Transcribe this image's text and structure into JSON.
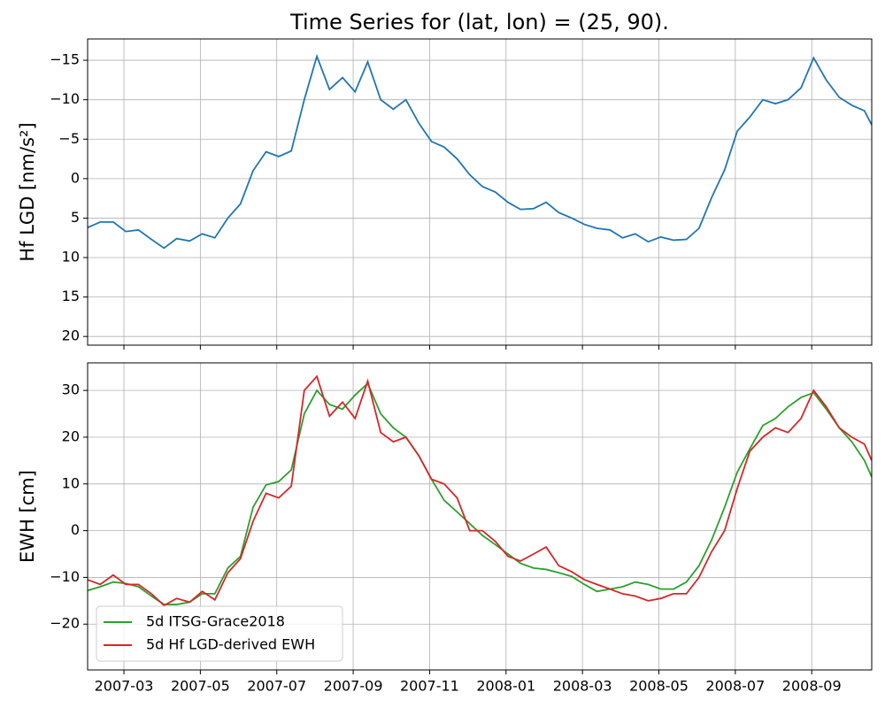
{
  "chart_data": [
    {
      "type": "line",
      "title": "Time Series for (lat, lon) = (25, 90).",
      "ylabel": "Hf LGD [nm/s²]",
      "grid": true,
      "x": [
        1.05,
        1.38,
        1.72,
        2.05,
        2.38,
        2.72,
        3.05,
        3.38,
        3.72,
        4.05,
        4.38,
        4.72,
        5.05,
        5.38,
        5.72,
        6.05,
        6.38,
        6.72,
        7.05,
        7.38,
        7.72,
        8.05,
        8.38,
        8.72,
        9.05,
        9.38,
        9.72,
        10.05,
        10.38,
        10.72,
        11.05,
        11.38,
        11.72,
        12.05,
        12.38,
        12.72,
        13.05,
        13.38,
        13.72,
        14.05,
        14.38,
        14.72,
        15.05,
        15.38,
        15.72,
        16.05,
        16.38,
        16.72,
        17.05,
        17.38,
        17.72,
        18.05,
        18.38,
        18.72,
        19.05,
        19.38,
        19.72,
        20.05,
        20.38,
        20.72,
        21.05,
        21.38,
        21.57
      ],
      "xlim": [
        1.05,
        21.57
      ],
      "xticks": [
        2,
        4,
        6,
        8,
        10,
        12,
        14,
        16,
        18,
        20
      ],
      "ylim": [
        21.1,
        -17.7
      ],
      "yticks": [
        {
          "value": -15,
          "label": "−15"
        },
        {
          "value": -10,
          "label": "−10"
        },
        {
          "value": -5,
          "label": "−5"
        },
        0,
        5,
        10,
        15,
        20
      ],
      "series": [
        {
          "name": "Hf LGD",
          "color": "#1f77b4",
          "values": [
            6.2,
            5.5,
            5.5,
            6.7,
            6.5,
            7.7,
            8.8,
            7.6,
            7.9,
            7.0,
            7.5,
            5.0,
            3.2,
            -1.0,
            -3.4,
            -2.8,
            -3.5,
            -10.0,
            -15.5,
            -11.3,
            -12.8,
            -11.0,
            -14.8,
            -10.0,
            -8.8,
            -10.0,
            -7.0,
            -4.7,
            -4.0,
            -2.5,
            -0.5,
            1.0,
            1.7,
            3.0,
            3.9,
            3.8,
            3.0,
            4.3,
            5.0,
            5.8,
            6.3,
            6.5,
            7.5,
            7.0,
            8.0,
            7.4,
            7.8,
            7.7,
            6.3,
            2.4,
            -1.1,
            -6.0,
            -7.8,
            -10.0,
            -9.5,
            -10.0,
            -11.5,
            -15.3,
            -12.5,
            -10.3,
            -9.3,
            -8.6,
            -6.8
          ]
        }
      ]
    },
    {
      "type": "line",
      "ylabel": "EWH [cm]",
      "grid": true,
      "legend": "lower left",
      "x": [
        1.05,
        1.38,
        1.72,
        2.05,
        2.38,
        2.72,
        3.05,
        3.38,
        3.72,
        4.05,
        4.38,
        4.72,
        5.05,
        5.38,
        5.72,
        6.05,
        6.38,
        6.72,
        7.05,
        7.38,
        7.72,
        8.05,
        8.38,
        8.72,
        9.05,
        9.38,
        9.72,
        10.05,
        10.38,
        10.72,
        11.05,
        11.38,
        11.72,
        12.05,
        12.38,
        12.72,
        13.05,
        13.38,
        13.72,
        14.05,
        14.38,
        14.72,
        15.05,
        15.38,
        15.72,
        16.05,
        16.38,
        16.72,
        17.05,
        17.38,
        17.72,
        18.05,
        18.38,
        18.72,
        19.05,
        19.38,
        19.72,
        20.05,
        20.38,
        20.72,
        21.05,
        21.38,
        21.57
      ],
      "xlim": [
        1.05,
        21.57
      ],
      "xticks": [
        {
          "value": 2,
          "label": "2007-03"
        },
        {
          "value": 4,
          "label": "2007-05"
        },
        {
          "value": 6,
          "label": "2007-07"
        },
        {
          "value": 8,
          "label": "2007-09"
        },
        {
          "value": 10,
          "label": "2007-11"
        },
        {
          "value": 12,
          "label": "2008-01"
        },
        {
          "value": 14,
          "label": "2008-03"
        },
        {
          "value": 16,
          "label": "2008-05"
        },
        {
          "value": 18,
          "label": "2008-07"
        },
        {
          "value": 20,
          "label": "2008-09"
        }
      ],
      "ylim": [
        -29.8,
        35.9
      ],
      "yticks": [
        {
          "value": -20,
          "label": "−20"
        },
        {
          "value": -10,
          "label": "−10"
        },
        0,
        10,
        20,
        30
      ],
      "series": [
        {
          "name": "5d ITSG-Grace2018",
          "color": "#2ca02c",
          "values": [
            -12.8,
            -12.0,
            -11.0,
            -11.3,
            -12.0,
            -14.0,
            -15.8,
            -15.8,
            -15.3,
            -13.5,
            -13.5,
            -8.0,
            -5.5,
            5.0,
            9.8,
            10.5,
            13.0,
            25.0,
            30.0,
            27.0,
            26.0,
            29.0,
            31.5,
            25.0,
            22.0,
            20.0,
            16.0,
            11.0,
            6.5,
            4.0,
            1.5,
            -1.0,
            -3.0,
            -5.0,
            -7.0,
            -8.0,
            -8.3,
            -9.0,
            -9.8,
            -11.5,
            -13.0,
            -12.5,
            -12.0,
            -11.0,
            -11.5,
            -12.5,
            -12.5,
            -11.0,
            -7.5,
            -2.0,
            5.0,
            12.5,
            17.5,
            22.5,
            24.0,
            26.5,
            28.5,
            29.5,
            26.0,
            22.0,
            19.0,
            15.0,
            11.5
          ]
        },
        {
          "name": "5d Hf LGD-derived EWH",
          "color": "#d62728",
          "values": [
            -10.5,
            -11.5,
            -9.5,
            -11.5,
            -11.5,
            -13.5,
            -16.0,
            -14.5,
            -15.3,
            -13.0,
            -14.8,
            -9.0,
            -6.0,
            2.0,
            8.0,
            7.0,
            9.5,
            30.0,
            33.0,
            24.5,
            27.5,
            24.0,
            32.0,
            21.0,
            19.0,
            20.0,
            16.0,
            11.0,
            10.0,
            7.0,
            0.0,
            0.0,
            -2.3,
            -5.5,
            -6.5,
            -5.0,
            -3.5,
            -7.5,
            -8.8,
            -10.5,
            -11.5,
            -12.5,
            -13.5,
            -14.0,
            -15.0,
            -14.5,
            -13.5,
            -13.5,
            -10.0,
            -4.5,
            0.0,
            9.0,
            17.0,
            20.0,
            22.0,
            21.0,
            24.0,
            30.0,
            26.5,
            22.0,
            20.0,
            18.5,
            15.0
          ]
        }
      ]
    }
  ]
}
